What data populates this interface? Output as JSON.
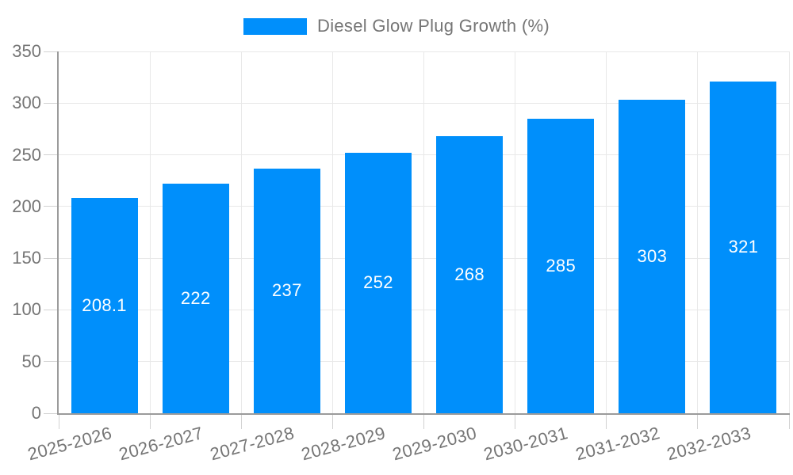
{
  "legend": {
    "label": "Diesel Glow Plug Growth (%)"
  },
  "chart_data": {
    "type": "bar",
    "title": "Diesel Glow Plug Growth (%)",
    "categories": [
      "2025-2026",
      "2026-2027",
      "2027-2028",
      "2028-2029",
      "2029-2030",
      "2030-2031",
      "2031-2032",
      "2032-2033"
    ],
    "values": [
      208.1,
      222,
      237,
      252,
      268,
      285,
      303,
      321
    ],
    "bar_labels": [
      "208.1",
      "222",
      "237",
      "252",
      "268",
      "285",
      "303",
      "321"
    ],
    "xlabel": "",
    "ylabel": "",
    "ylim": [
      0,
      350
    ],
    "yticks": [
      0,
      50,
      100,
      150,
      200,
      250,
      300,
      350
    ],
    "grid": true,
    "legend_position": "top",
    "colors": {
      "bar": "#008FFB",
      "grid": "#e8e8e8",
      "axis": "#9b9b9b",
      "tick": "#d2d2d2",
      "text": "#757575",
      "bar_label_text": "#ffffff",
      "background": "#ffffff"
    }
  }
}
